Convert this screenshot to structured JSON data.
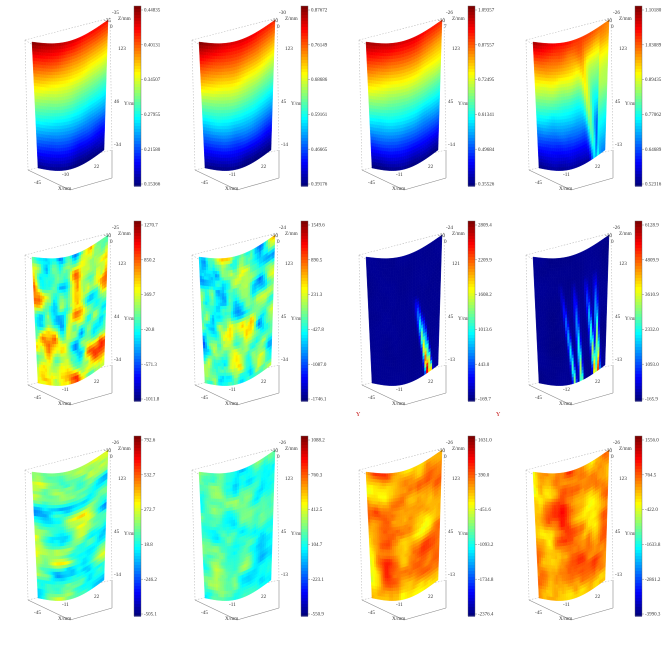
{
  "figure": {
    "panels": [
      {
        "colorbar": [
          "0.44835",
          "0.40131",
          "0.34507",
          "0.27955",
          "0.21580",
          "0.15366"
        ],
        "z_axis": [
          "-35",
          "-35",
          "0"
        ],
        "y_axis": [
          "123",
          "46",
          "-34"
        ],
        "x_axis": [
          "-45",
          "-10",
          "22"
        ],
        "labels": {
          "z": "Z/mm",
          "y": "Y/mm",
          "x": "X/mm"
        },
        "pattern": "disp_smooth"
      },
      {
        "colorbar": [
          "0.87672",
          "0.76149",
          "0.68686",
          "0.59161",
          "0.46665",
          "0.39176"
        ],
        "z_axis": [
          "-30",
          "-10",
          "0"
        ],
        "y_axis": [
          "123",
          "45",
          "-14"
        ],
        "x_axis": [
          "-45",
          "-11",
          "22"
        ],
        "labels": {
          "z": "Z/mm",
          "y": "Y/mm",
          "x": "X/mm"
        },
        "pattern": "disp_smooth"
      },
      {
        "colorbar": [
          "1.09357",
          "0.87557",
          "0.72495",
          "0.61341",
          "0.49684",
          "0.35526"
        ],
        "z_axis": [
          "-26",
          "-10",
          "7"
        ],
        "y_axis": [
          "123",
          "45",
          "-14"
        ],
        "x_axis": [
          "-45",
          "-11",
          "22"
        ],
        "labels": {
          "z": "Z/mm",
          "y": "Y/mm",
          "x": "X/mm"
        },
        "pattern": "disp_smooth"
      },
      {
        "colorbar": [
          "1.10180",
          "1.03089",
          "0.89435",
          "0.77062",
          "0.64689",
          "0.52316"
        ],
        "z_axis": [
          "-26",
          "-10",
          "0"
        ],
        "y_axis": [
          "123",
          "45",
          "-13"
        ],
        "x_axis": [
          "-45",
          "-11",
          "22"
        ],
        "labels": {
          "z": "Z/mm",
          "y": "Y/mm",
          "x": "X/mm"
        },
        "pattern": "disp_crack"
      },
      {
        "colorbar": [
          "1270.7",
          "850.2",
          "369.7",
          "-20.8",
          "-571.3",
          "-1011.8"
        ],
        "z_axis": [
          "-25",
          "-10",
          "0"
        ],
        "y_axis": [
          "123",
          "44",
          "-34"
        ],
        "x_axis": [
          "-45",
          "-11",
          "22"
        ],
        "labels": {
          "z": "Z/mm",
          "y": "Y/mm",
          "x": "X/mm"
        },
        "pattern": "strain_blobs"
      },
      {
        "colorbar": [
          "1549.6",
          "890.5",
          "231.3",
          "-427.8",
          "-1087.0",
          "-1746.1"
        ],
        "z_axis": [
          "-24",
          "-10",
          "0"
        ],
        "y_axis": [
          "123",
          "45",
          "-34"
        ],
        "x_axis": [
          "-45",
          "-11",
          "22"
        ],
        "labels": {
          "z": "Z/mm",
          "y": "Y/mm",
          "x": "X/mm"
        },
        "pattern": "strain_blobs2"
      },
      {
        "colorbar": [
          "2809.4",
          "2209.9",
          "1608.2",
          "1013.6",
          "443.0",
          "-169.7"
        ],
        "z_axis": [
          "-24",
          "-10",
          "0"
        ],
        "y_axis": [
          "121",
          "45",
          "-13"
        ],
        "x_axis": [
          "-45",
          "-11",
          "22"
        ],
        "labels": {
          "z": "Z/mm",
          "y": "Y/mm",
          "x": "X/mm"
        },
        "pattern": "crack_one"
      },
      {
        "colorbar": [
          "6128.9",
          "4809.9",
          "3610.9",
          "2332.0",
          "1093.0",
          "-165.9"
        ],
        "z_axis": [
          "-26",
          "-10",
          "0"
        ],
        "y_axis": [
          "123",
          "45",
          "-13"
        ],
        "x_axis": [
          "-45",
          "-12",
          "22"
        ],
        "labels": {
          "z": "Z/mm",
          "y": "Y/mm",
          "x": "X/mm"
        },
        "pattern": "crack_multi"
      },
      {
        "colorbar": [
          "792.6",
          "532.7",
          "272.7",
          "18.8",
          "-246.2",
          "-505.1"
        ],
        "z_axis": [
          "-26",
          "-10",
          "0"
        ],
        "y_axis": [
          "123",
          "45",
          "-14"
        ],
        "x_axis": [
          "-45",
          "-11",
          "22"
        ],
        "labels": {
          "z": "Z/mm",
          "y": "Y/mm",
          "x": "X/mm"
        },
        "pattern": "strain_bands"
      },
      {
        "colorbar": [
          "1088.2",
          "760.3",
          "412.5",
          "104.7",
          "-223.1",
          "-550.9"
        ],
        "z_axis": [
          "-26",
          "-10",
          "0"
        ],
        "y_axis": [
          "123",
          "45",
          "-13"
        ],
        "x_axis": [
          "-45",
          "-11",
          "22"
        ],
        "labels": {
          "z": "Z/mm",
          "y": "Y/mm",
          "x": "X/mm"
        },
        "pattern": "strain_cyan"
      },
      {
        "colorbar": [
          "1631.0",
          "390.0",
          "-451.6",
          "-1093.2",
          "-1734.8",
          "-2376.4"
        ],
        "z_axis": [
          "-26",
          "-10",
          "0"
        ],
        "y_axis": [
          "123",
          "45",
          "-13"
        ],
        "x_axis": [
          "-45",
          "-11",
          "22"
        ],
        "labels": {
          "z": "Z/mm",
          "y": "Y/mm",
          "x": "X/mm"
        },
        "pattern": "strain_orange"
      },
      {
        "colorbar": [
          "1556.0",
          "764.5",
          "-422.0",
          "-1633.8",
          "-2861.2",
          "-3990.3"
        ],
        "z_axis": [
          "-26",
          "-10",
          "0"
        ],
        "y_axis": [
          "123",
          "45",
          "-13"
        ],
        "x_axis": [
          "-45",
          "-11",
          "22"
        ],
        "labels": {
          "z": "Z/mm",
          "y": "Y/mm",
          "x": "X/mm"
        },
        "pattern": "strain_orange2"
      }
    ],
    "stray_marks": [
      "Y",
      "Y"
    ]
  }
}
